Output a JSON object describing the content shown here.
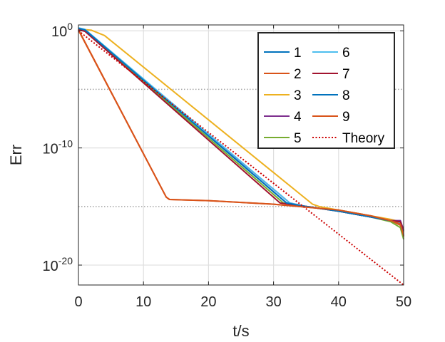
{
  "chart_data": {
    "type": "line",
    "title": "",
    "xlabel": "t/s",
    "ylabel": "Err",
    "y_scale": "log10",
    "xlim": [
      0,
      50
    ],
    "ylim_log10": [
      -21.7,
      0.5
    ],
    "x_ticks": [
      0,
      10,
      20,
      30,
      40,
      50
    ],
    "y_ticks": [
      {
        "log10": 0,
        "base": "10",
        "exp": "0"
      },
      {
        "log10": -10,
        "base": "10",
        "exp": "-10"
      },
      {
        "log10": -20,
        "base": "10",
        "exp": "-20"
      }
    ],
    "grid": true,
    "legend_position": "top-right",
    "legend_columns": 2,
    "series": [
      {
        "name": "1",
        "color": "#0072BD",
        "style": "solid",
        "points": [
          [
            0,
            0.2
          ],
          [
            1,
            0.1
          ],
          [
            32,
            -14.7
          ],
          [
            35,
            -15
          ],
          [
            40,
            -15.4
          ],
          [
            45,
            -15.9
          ],
          [
            48,
            -16.2
          ],
          [
            49.5,
            -16.5
          ],
          [
            50,
            -17.5
          ]
        ]
      },
      {
        "name": "2",
        "color": "#D95319",
        "style": "solid",
        "points": [
          [
            0,
            0.1
          ],
          [
            13.5,
            -14.2
          ],
          [
            14,
            -14.4
          ],
          [
            20,
            -14.5
          ],
          [
            30,
            -14.8
          ],
          [
            40,
            -15.3
          ],
          [
            45,
            -15.8
          ],
          [
            48,
            -16.2
          ],
          [
            49.5,
            -16.6
          ],
          [
            50,
            -17.6
          ]
        ]
      },
      {
        "name": "3",
        "color": "#EDB120",
        "style": "solid",
        "points": [
          [
            0,
            0.15
          ],
          [
            2,
            0.05
          ],
          [
            4,
            -0.4
          ],
          [
            36,
            -14.8
          ],
          [
            37,
            -15
          ],
          [
            40,
            -15.3
          ],
          [
            45,
            -15.8
          ],
          [
            48,
            -16.1
          ],
          [
            49.5,
            -16.3
          ],
          [
            50,
            -17.2
          ]
        ]
      },
      {
        "name": "4",
        "color": "#7E2F8E",
        "style": "solid",
        "points": [
          [
            0,
            0.2
          ],
          [
            1,
            0.05
          ],
          [
            32.5,
            -14.7
          ],
          [
            35,
            -15
          ],
          [
            40,
            -15.4
          ],
          [
            45,
            -15.9
          ],
          [
            48,
            -16.2
          ],
          [
            49.5,
            -16.2
          ],
          [
            50,
            -17
          ]
        ]
      },
      {
        "name": "5",
        "color": "#77AC30",
        "style": "solid",
        "points": [
          [
            0,
            0.15
          ],
          [
            1,
            0
          ],
          [
            31.5,
            -14.7
          ],
          [
            35,
            -15
          ],
          [
            40,
            -15.4
          ],
          [
            45,
            -15.9
          ],
          [
            48,
            -16.3
          ],
          [
            49.5,
            -16.8
          ],
          [
            50,
            -17.8
          ]
        ]
      },
      {
        "name": "6",
        "color": "#4DBEEE",
        "style": "solid",
        "points": [
          [
            0,
            0.25
          ],
          [
            1,
            0.12
          ],
          [
            32.5,
            -14.7
          ],
          [
            35,
            -15
          ],
          [
            40,
            -15.4
          ],
          [
            45,
            -15.9
          ],
          [
            48,
            -16.2
          ],
          [
            49.5,
            -16.4
          ],
          [
            50,
            -17.3
          ]
        ]
      },
      {
        "name": "7",
        "color": "#A2142F",
        "style": "solid",
        "points": [
          [
            0,
            0.1
          ],
          [
            1,
            -0.05
          ],
          [
            31,
            -14.7
          ],
          [
            35,
            -15
          ],
          [
            40,
            -15.4
          ],
          [
            45,
            -15.9
          ],
          [
            48,
            -16.2
          ],
          [
            49.5,
            -16.3
          ],
          [
            50,
            -17.1
          ]
        ]
      },
      {
        "name": "8",
        "color": "#0072BD",
        "style": "solid",
        "points": [
          [
            0,
            0.2
          ],
          [
            1,
            0.08
          ],
          [
            32,
            -14.7
          ],
          [
            35,
            -15
          ],
          [
            40,
            -15.4
          ],
          [
            45,
            -15.9
          ],
          [
            48,
            -16.2
          ],
          [
            49.5,
            -16.5
          ],
          [
            50,
            -17.4
          ]
        ]
      },
      {
        "name": "9",
        "color": "#D95319",
        "style": "solid",
        "points": [
          [
            0,
            0.05
          ],
          [
            13.5,
            -14.2
          ],
          [
            14,
            -14.4
          ],
          [
            20,
            -14.5
          ],
          [
            30,
            -14.8
          ],
          [
            40,
            -15.3
          ],
          [
            45,
            -15.8
          ],
          [
            48,
            -16.2
          ],
          [
            49.5,
            -16.5
          ],
          [
            50,
            -17.5
          ]
        ]
      },
      {
        "name": "Theory",
        "color": "#CC0000",
        "style": "dotted",
        "points": [
          [
            0,
            0
          ],
          [
            50,
            -21.7
          ]
        ]
      }
    ],
    "reference_lines_log10": [
      -5,
      -15
    ]
  }
}
